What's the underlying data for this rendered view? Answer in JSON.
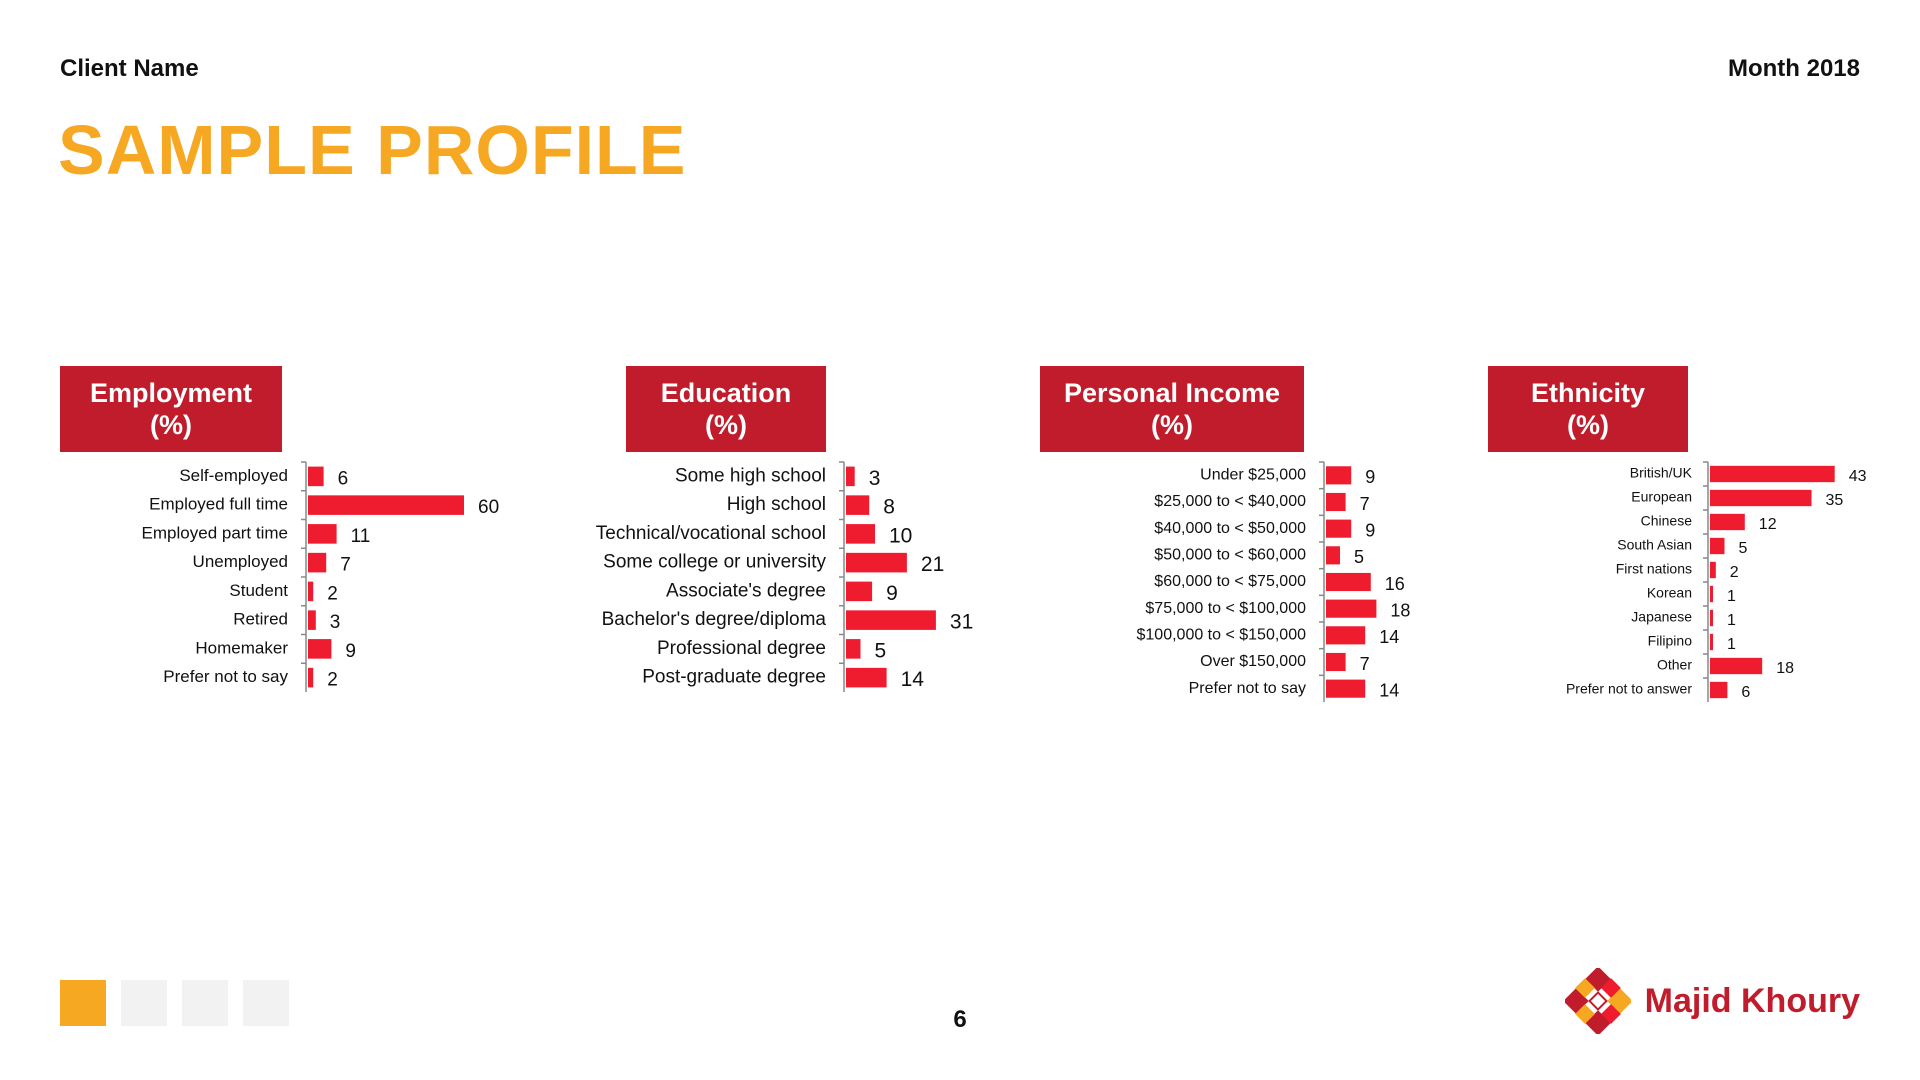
{
  "header": {
    "client_name": "Client Name",
    "month": "Month 2018"
  },
  "page_title": "SAMPLE PROFILE",
  "footer": {
    "page_number": "6",
    "brand_name": "Majid Khoury"
  },
  "colors": {
    "accent": "#f7a823",
    "bar": "#ee1c2e",
    "header_bg": "#c01c2c"
  },
  "icons": {
    "logo": "majid-khoury-logo-icon"
  },
  "chart_data": [
    {
      "type": "bar",
      "orientation": "horizontal",
      "title": "Employment",
      "subtitle": "(%)",
      "categories": [
        "Self-employed",
        "Employed full time",
        "Employed part time",
        "Unemployed",
        "Student",
        "Retired",
        "Homemaker",
        "Prefer not to say"
      ],
      "values": [
        6,
        60,
        11,
        7,
        2,
        3,
        9,
        2
      ]
    },
    {
      "type": "bar",
      "orientation": "horizontal",
      "title": "Education",
      "subtitle": "(%)",
      "categories": [
        "Some high school",
        "High school",
        "Technical/vocational school",
        "Some college or university",
        "Associate's degree",
        "Bachelor's degree/diploma",
        "Professional degree",
        "Post-graduate degree"
      ],
      "values": [
        3,
        8,
        10,
        21,
        9,
        31,
        5,
        14
      ]
    },
    {
      "type": "bar",
      "orientation": "horizontal",
      "title": "Personal Income",
      "subtitle": "(%)",
      "categories": [
        "Under $25,000",
        "$25,000 to < $40,000",
        "$40,000 to < $50,000",
        "$50,000 to < $60,000",
        "$60,000 to < $75,000",
        "$75,000 to < $100,000",
        "$100,000 to < $150,000",
        "Over $150,000",
        "Prefer not to say"
      ],
      "values": [
        9,
        7,
        9,
        5,
        16,
        18,
        14,
        7,
        14
      ]
    },
    {
      "type": "bar",
      "orientation": "horizontal",
      "title": "Ethnicity",
      "subtitle": "(%)",
      "categories": [
        "British/UK",
        "European",
        "Chinese",
        "South Asian",
        "First nations",
        "Korean",
        "Japanese",
        "Filipino",
        "Other",
        "Prefer not to answer"
      ],
      "values": [
        43,
        35,
        12,
        5,
        2,
        1,
        1,
        1,
        18,
        6
      ]
    }
  ]
}
